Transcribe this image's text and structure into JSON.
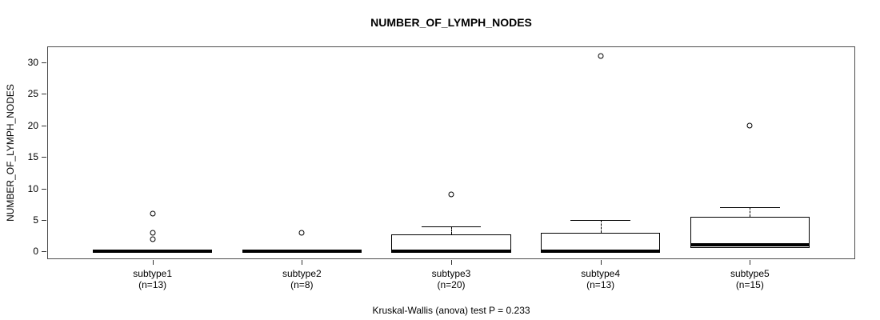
{
  "title": "NUMBER_OF_LYMPH_NODES",
  "y_axis_label": "NUMBER_OF_LYMPH_NODES",
  "caption": "Kruskal-Wallis (anova) test P = 0.233",
  "colors": {
    "line": "#000000",
    "box_fill": "#ffffff",
    "plot_border": "#4d4d4d",
    "background": "#ffffff"
  },
  "chart_data": {
    "type": "boxplot",
    "title": "NUMBER_OF_LYMPH_NODES",
    "xlabel": "",
    "ylabel": "NUMBER_OF_LYMPH_NODES",
    "ylim": [
      -1.1,
      32.4
    ],
    "yticks": [
      0,
      5,
      10,
      15,
      20,
      25,
      30
    ],
    "grid": false,
    "legend": "none",
    "annotation": "Kruskal-Wallis (anova) test P = 0.233",
    "groups": [
      {
        "label": "subtype1",
        "sublabel": "(n=13)",
        "n": 13,
        "q1": 0,
        "median": 0,
        "q3": 0,
        "whisker_low": 0,
        "whisker_high": 0,
        "outliers": [
          2,
          3,
          6
        ]
      },
      {
        "label": "subtype2",
        "sublabel": "(n=8)",
        "n": 8,
        "q1": 0,
        "median": 0,
        "q3": 0,
        "whisker_low": 0,
        "whisker_high": 0,
        "outliers": [
          3
        ]
      },
      {
        "label": "subtype3",
        "sublabel": "(n=20)",
        "n": 20,
        "q1": 0,
        "median": 0,
        "q3": 2.75,
        "whisker_low": 0,
        "whisker_high": 4,
        "outliers": [
          9
        ]
      },
      {
        "label": "subtype4",
        "sublabel": "(n=13)",
        "n": 13,
        "q1": 0,
        "median": 0,
        "q3": 3,
        "whisker_low": 0,
        "whisker_high": 5,
        "outliers": [
          31
        ]
      },
      {
        "label": "subtype5",
        "sublabel": "(n=15)",
        "n": 15,
        "q1": 0.5,
        "median": 1,
        "q3": 5.5,
        "whisker_low": 0.5,
        "whisker_high": 7,
        "outliers": [
          20
        ]
      }
    ]
  }
}
